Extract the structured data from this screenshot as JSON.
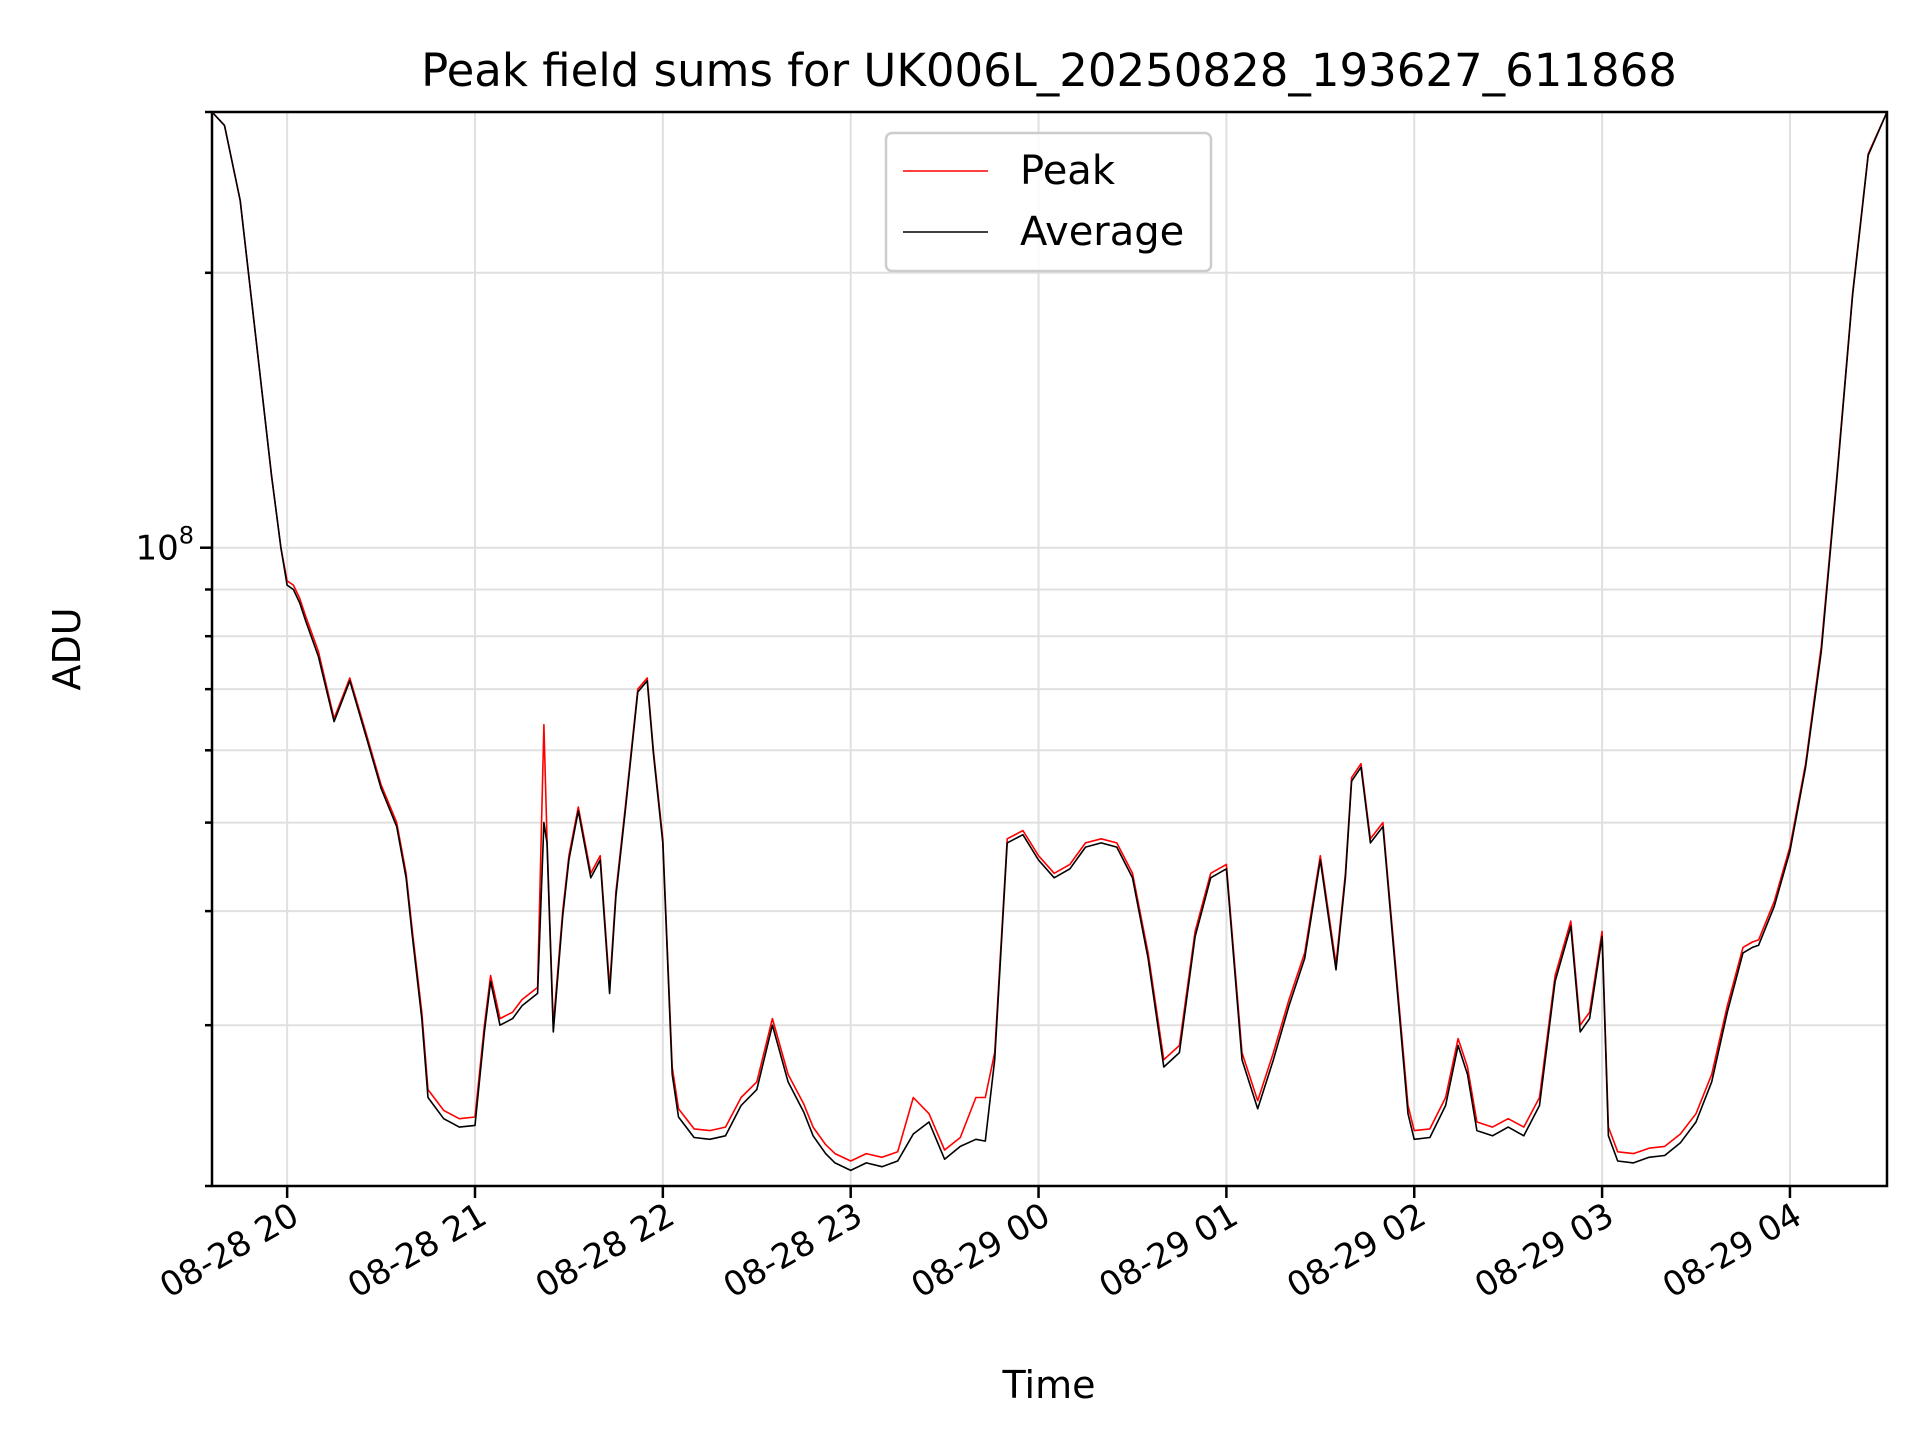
{
  "chart_data": {
    "type": "line",
    "title": "Peak field sums for UK006L_20250828_193627_611868",
    "xlabel": "Time",
    "ylabel": "ADU",
    "yscale": "log",
    "ylim": [
      20000000,
      300000000
    ],
    "xlim": [
      "2025-08-28 19:36",
      "2025-08-29 04:31"
    ],
    "grid": true,
    "legend_position": "upper center",
    "x_ticks": [
      "08-28 20",
      "08-28 21",
      "08-28 22",
      "08-28 23",
      "08-29 00",
      "08-29 01",
      "08-29 02",
      "08-29 03",
      "08-29 04"
    ],
    "y_tick_label": {
      "base": "10",
      "exponent": "8"
    },
    "x": [
      "2025-08-28 19:36",
      "2025-08-28 19:40",
      "2025-08-28 19:45",
      "2025-08-28 19:50",
      "2025-08-28 19:55",
      "2025-08-28 19:58",
      "2025-08-28 20:00",
      "2025-08-28 20:02",
      "2025-08-28 20:04",
      "2025-08-28 20:06",
      "2025-08-28 20:10",
      "2025-08-28 20:15",
      "2025-08-28 20:20",
      "2025-08-28 20:25",
      "2025-08-28 20:30",
      "2025-08-28 20:35",
      "2025-08-28 20:38",
      "2025-08-28 20:40",
      "2025-08-28 20:43",
      "2025-08-28 20:45",
      "2025-08-28 20:50",
      "2025-08-28 20:55",
      "2025-08-28 21:00",
      "2025-08-28 21:03",
      "2025-08-28 21:05",
      "2025-08-28 21:08",
      "2025-08-28 21:12",
      "2025-08-28 21:15",
      "2025-08-28 21:20",
      "2025-08-28 21:22",
      "2025-08-28 21:23",
      "2025-08-28 21:25",
      "2025-08-28 21:28",
      "2025-08-28 21:30",
      "2025-08-28 21:33",
      "2025-08-28 21:37",
      "2025-08-28 21:40",
      "2025-08-28 21:43",
      "2025-08-28 21:45",
      "2025-08-28 21:48",
      "2025-08-28 21:52",
      "2025-08-28 21:55",
      "2025-08-28 21:57",
      "2025-08-28 22:00",
      "2025-08-28 22:03",
      "2025-08-28 22:05",
      "2025-08-28 22:10",
      "2025-08-28 22:15",
      "2025-08-28 22:20",
      "2025-08-28 22:25",
      "2025-08-28 22:30",
      "2025-08-28 22:35",
      "2025-08-28 22:40",
      "2025-08-28 22:45",
      "2025-08-28 22:48",
      "2025-08-28 22:52",
      "2025-08-28 22:55",
      "2025-08-28 23:00",
      "2025-08-28 23:05",
      "2025-08-28 23:10",
      "2025-08-28 23:15",
      "2025-08-28 23:20",
      "2025-08-28 23:25",
      "2025-08-28 23:30",
      "2025-08-28 23:35",
      "2025-08-28 23:40",
      "2025-08-28 23:43",
      "2025-08-28 23:46",
      "2025-08-28 23:50",
      "2025-08-28 23:55",
      "2025-08-29 00:00",
      "2025-08-29 00:05",
      "2025-08-29 00:10",
      "2025-08-29 00:15",
      "2025-08-29 00:20",
      "2025-08-29 00:25",
      "2025-08-29 00:30",
      "2025-08-29 00:35",
      "2025-08-29 00:40",
      "2025-08-29 00:45",
      "2025-08-29 00:50",
      "2025-08-29 00:55",
      "2025-08-29 01:00",
      "2025-08-29 01:05",
      "2025-08-29 01:10",
      "2025-08-29 01:15",
      "2025-08-29 01:20",
      "2025-08-29 01:25",
      "2025-08-29 01:30",
      "2025-08-29 01:35",
      "2025-08-29 01:38",
      "2025-08-29 01:40",
      "2025-08-29 01:43",
      "2025-08-29 01:46",
      "2025-08-29 01:50",
      "2025-08-29 01:55",
      "2025-08-29 01:58",
      "2025-08-29 02:00",
      "2025-08-29 02:05",
      "2025-08-29 02:10",
      "2025-08-29 02:14",
      "2025-08-29 02:17",
      "2025-08-29 02:20",
      "2025-08-29 02:25",
      "2025-08-29 02:30",
      "2025-08-29 02:35",
      "2025-08-29 02:40",
      "2025-08-29 02:45",
      "2025-08-29 02:50",
      "2025-08-29 02:53",
      "2025-08-29 02:56",
      "2025-08-29 03:00",
      "2025-08-29 03:02",
      "2025-08-29 03:05",
      "2025-08-29 03:10",
      "2025-08-29 03:15",
      "2025-08-29 03:20",
      "2025-08-29 03:25",
      "2025-08-29 03:30",
      "2025-08-29 03:35",
      "2025-08-29 03:40",
      "2025-08-29 03:45",
      "2025-08-29 03:48",
      "2025-08-29 03:50",
      "2025-08-29 03:55",
      "2025-08-29 04:00",
      "2025-08-29 04:05",
      "2025-08-29 04:10",
      "2025-08-29 04:15",
      "2025-08-29 04:20",
      "2025-08-29 04:25",
      "2025-08-29 04:31"
    ],
    "series": [
      {
        "name": "Peak",
        "color": "#ff0000",
        "values": [
          300000000,
          290000000,
          240000000,
          170000000,
          120000000,
          100000000,
          92000000,
          91000000,
          88000000,
          84000000,
          77000000,
          65000000,
          72000000,
          63000000,
          55000000,
          50000000,
          44000000,
          38000000,
          31000000,
          25500000,
          24200000,
          23700000,
          23800000,
          30000000,
          34000000,
          30500000,
          31000000,
          32000000,
          33000000,
          64000000,
          48000000,
          30000000,
          40000000,
          46000000,
          52000000,
          44000000,
          46000000,
          33000000,
          42000000,
          52000000,
          70000000,
          72000000,
          60000000,
          48000000,
          27000000,
          24300000,
          23100000,
          23000000,
          23200000,
          25000000,
          26000000,
          30500000,
          26500000,
          24600000,
          23200000,
          22200000,
          21700000,
          21300000,
          21700000,
          21500000,
          21800000,
          25000000,
          24000000,
          21900000,
          22600000,
          25000000,
          25000000,
          28000000,
          48000000,
          49000000,
          46000000,
          44000000,
          45000000,
          47500000,
          48000000,
          47500000,
          44000000,
          36000000,
          27500000,
          28500000,
          38000000,
          44000000,
          45000000,
          28000000,
          24800000,
          28000000,
          32000000,
          36000000,
          46000000,
          35000000,
          44000000,
          56000000,
          58000000,
          48000000,
          50000000,
          32000000,
          24500000,
          23000000,
          23100000,
          25000000,
          29000000,
          27000000,
          23500000,
          23200000,
          23700000,
          23200000,
          25000000,
          34000000,
          39000000,
          30000000,
          31000000,
          38000000,
          23200000,
          21800000,
          21700000,
          22000000,
          22100000,
          22800000,
          24000000,
          26500000,
          31500000,
          36500000,
          37000000,
          37200000,
          41000000,
          47000000,
          58000000,
          78000000,
          120000000,
          190000000,
          270000000,
          300000000
        ]
      },
      {
        "name": "Average",
        "color": "#000000",
        "values": [
          300000000,
          290000000,
          240000000,
          170000000,
          120000000,
          100000000,
          91000000,
          90000000,
          87000000,
          83000000,
          76000000,
          64500000,
          71500000,
          62500000,
          54500000,
          49500000,
          43500000,
          37500000,
          30500000,
          25000000,
          23700000,
          23200000,
          23300000,
          29500000,
          33500000,
          30000000,
          30500000,
          31500000,
          32500000,
          50000000,
          47500000,
          29500000,
          39500000,
          45500000,
          51500000,
          43500000,
          45500000,
          32500000,
          41500000,
          51500000,
          69500000,
          71500000,
          59500000,
          47500000,
          26500000,
          23800000,
          22600000,
          22500000,
          22700000,
          24500000,
          25500000,
          30000000,
          26000000,
          24100000,
          22700000,
          21700000,
          21200000,
          20800000,
          21200000,
          21000000,
          21300000,
          22800000,
          23500000,
          21400000,
          22100000,
          22500000,
          22400000,
          27500000,
          47500000,
          48500000,
          45500000,
          43500000,
          44500000,
          47000000,
          47500000,
          47000000,
          43500000,
          35500000,
          27000000,
          28000000,
          37500000,
          43500000,
          44500000,
          27500000,
          24300000,
          27500000,
          31500000,
          35500000,
          45500000,
          34500000,
          43500000,
          55500000,
          57500000,
          47500000,
          49500000,
          31500000,
          24000000,
          22500000,
          22600000,
          24500000,
          28500000,
          26500000,
          23000000,
          22700000,
          23200000,
          22700000,
          24500000,
          33500000,
          38500000,
          29500000,
          30500000,
          37500000,
          22700000,
          21300000,
          21200000,
          21500000,
          21600000,
          22300000,
          23500000,
          26000000,
          31000000,
          36000000,
          36500000,
          36700000,
          40500000,
          46500000,
          57500000,
          77000000,
          119000000,
          189000000,
          269000000,
          300000000
        ]
      }
    ]
  }
}
